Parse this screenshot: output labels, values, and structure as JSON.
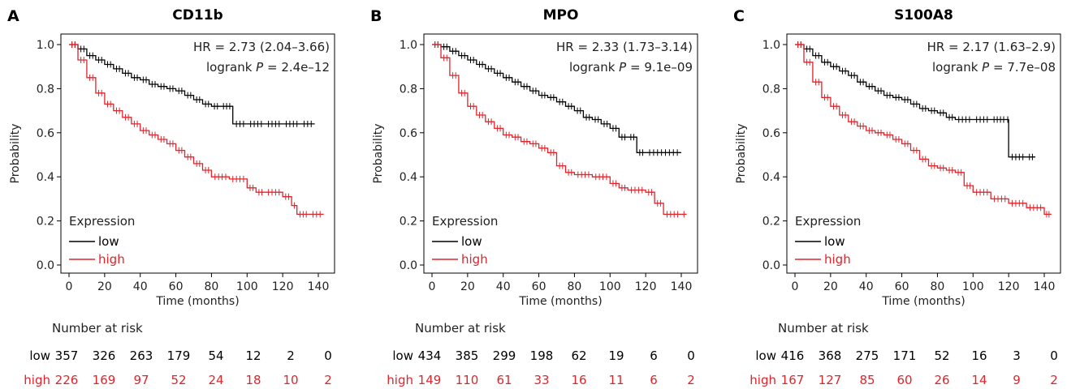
{
  "colors": {
    "low": "#000000",
    "high": "#e0242b"
  },
  "chart_data": [
    {
      "type": "line",
      "panel_letter": "A",
      "title": "CD11b",
      "xlabel": "Time (months)",
      "ylabel": "Probability",
      "xlim": [
        0,
        145
      ],
      "ylim": [
        0,
        1.05
      ],
      "x_ticks": [
        0,
        20,
        40,
        60,
        80,
        100,
        120,
        140
      ],
      "y_ticks": [
        "0.0",
        "0.2",
        "0.4",
        "0.6",
        "0.8",
        "1.0"
      ],
      "hr_text": "HR = 2.73 (2.04–3.66)",
      "logrank_prefix": "logrank ",
      "logrank_p_symbol": "P",
      "logrank_value": " = 2.4e–12",
      "legend_title": "Expression",
      "series": [
        {
          "name": "low",
          "color_key": "low",
          "x": [
            0,
            5,
            10,
            15,
            20,
            25,
            30,
            35,
            40,
            45,
            50,
            55,
            60,
            65,
            70,
            75,
            80,
            85,
            92,
            100,
            110,
            120,
            130,
            138
          ],
          "y": [
            1.0,
            0.98,
            0.95,
            0.93,
            0.91,
            0.89,
            0.87,
            0.85,
            0.84,
            0.82,
            0.81,
            0.8,
            0.79,
            0.77,
            0.75,
            0.73,
            0.72,
            0.72,
            0.64,
            0.64,
            0.64,
            0.64,
            0.64,
            0.64
          ]
        },
        {
          "name": "high",
          "color_key": "high",
          "x": [
            0,
            5,
            10,
            15,
            20,
            25,
            30,
            35,
            40,
            45,
            50,
            55,
            60,
            65,
            70,
            75,
            80,
            90,
            100,
            105,
            110,
            120,
            125,
            128,
            135,
            143
          ],
          "y": [
            1.0,
            0.93,
            0.85,
            0.78,
            0.73,
            0.7,
            0.67,
            0.64,
            0.61,
            0.59,
            0.57,
            0.55,
            0.52,
            0.49,
            0.46,
            0.43,
            0.4,
            0.39,
            0.35,
            0.33,
            0.33,
            0.31,
            0.27,
            0.23,
            0.23,
            0.23
          ]
        }
      ],
      "risk": {
        "title": "Number at risk",
        "low_label": "low",
        "high_label": "high",
        "low": [
          "357",
          "326",
          "263",
          "179",
          "54",
          "12",
          "2",
          "0"
        ],
        "high": [
          "226",
          "169",
          "97",
          "52",
          "24",
          "18",
          "10",
          "2"
        ]
      }
    },
    {
      "type": "line",
      "panel_letter": "B",
      "title": "MPO",
      "xlabel": "Time (months)",
      "ylabel": "Probability",
      "xlim": [
        0,
        145
      ],
      "ylim": [
        0,
        1.05
      ],
      "x_ticks": [
        0,
        20,
        40,
        60,
        80,
        100,
        120,
        140
      ],
      "y_ticks": [
        "0.0",
        "0.2",
        "0.4",
        "0.6",
        "0.8",
        "1.0"
      ],
      "hr_text": "HR = 2.33 (1.73–3.14)",
      "logrank_prefix": "logrank ",
      "logrank_p_symbol": "P",
      "logrank_value": " = 9.1e–09",
      "legend_title": "Expression",
      "series": [
        {
          "name": "low",
          "color_key": "low",
          "x": [
            0,
            5,
            10,
            15,
            20,
            25,
            30,
            35,
            40,
            45,
            50,
            55,
            60,
            65,
            70,
            75,
            80,
            85,
            90,
            95,
            100,
            105,
            110,
            115,
            120,
            140
          ],
          "y": [
            1.0,
            0.99,
            0.97,
            0.95,
            0.93,
            0.91,
            0.89,
            0.87,
            0.85,
            0.83,
            0.81,
            0.79,
            0.77,
            0.76,
            0.74,
            0.72,
            0.7,
            0.67,
            0.66,
            0.64,
            0.62,
            0.58,
            0.58,
            0.51,
            0.51,
            0.51
          ]
        },
        {
          "name": "high",
          "color_key": "high",
          "x": [
            0,
            5,
            10,
            15,
            20,
            25,
            30,
            35,
            40,
            45,
            50,
            55,
            60,
            65,
            70,
            75,
            80,
            90,
            100,
            105,
            110,
            120,
            125,
            130,
            140,
            143
          ],
          "y": [
            1.0,
            0.94,
            0.86,
            0.78,
            0.72,
            0.68,
            0.65,
            0.62,
            0.59,
            0.58,
            0.56,
            0.55,
            0.53,
            0.51,
            0.45,
            0.42,
            0.41,
            0.4,
            0.37,
            0.35,
            0.34,
            0.33,
            0.28,
            0.23,
            0.23,
            0.23
          ]
        }
      ],
      "risk": {
        "title": "Number at risk",
        "low_label": "low",
        "high_label": "high",
        "low": [
          "434",
          "385",
          "299",
          "198",
          "62",
          "19",
          "6",
          "0"
        ],
        "high": [
          "149",
          "110",
          "61",
          "33",
          "16",
          "11",
          "6",
          "2"
        ]
      }
    },
    {
      "type": "line",
      "panel_letter": "C",
      "title": "S100A8",
      "xlabel": "Time (months)",
      "ylabel": "Probability",
      "xlim": [
        0,
        145
      ],
      "ylim": [
        0,
        1.05
      ],
      "x_ticks": [
        0,
        20,
        40,
        60,
        80,
        100,
        120,
        140
      ],
      "y_ticks": [
        "0.0",
        "0.2",
        "0.4",
        "0.6",
        "0.8",
        "1.0"
      ],
      "hr_text": "HR = 2.17 (1.63–2.9)",
      "logrank_prefix": "logrank ",
      "logrank_p_symbol": "P",
      "logrank_value": " = 7.7e–08",
      "legend_title": "Expression",
      "series": [
        {
          "name": "low",
          "color_key": "low",
          "x": [
            0,
            5,
            10,
            15,
            20,
            25,
            30,
            35,
            40,
            45,
            50,
            55,
            60,
            65,
            70,
            75,
            80,
            85,
            90,
            100,
            110,
            119,
            120,
            130,
            135
          ],
          "y": [
            1.0,
            0.98,
            0.95,
            0.92,
            0.9,
            0.88,
            0.86,
            0.83,
            0.81,
            0.79,
            0.77,
            0.76,
            0.75,
            0.73,
            0.71,
            0.7,
            0.69,
            0.67,
            0.66,
            0.66,
            0.66,
            0.66,
            0.49,
            0.49,
            0.49
          ]
        },
        {
          "name": "high",
          "color_key": "high",
          "x": [
            0,
            5,
            10,
            15,
            20,
            25,
            30,
            35,
            40,
            45,
            50,
            55,
            60,
            65,
            70,
            75,
            80,
            85,
            90,
            95,
            100,
            110,
            120,
            130,
            140,
            144
          ],
          "y": [
            1.0,
            0.92,
            0.83,
            0.76,
            0.72,
            0.68,
            0.65,
            0.63,
            0.61,
            0.6,
            0.59,
            0.57,
            0.55,
            0.52,
            0.48,
            0.45,
            0.44,
            0.43,
            0.42,
            0.36,
            0.33,
            0.3,
            0.28,
            0.26,
            0.23,
            0.23
          ]
        }
      ],
      "risk": {
        "title": "Number at risk",
        "low_label": "low",
        "high_label": "high",
        "low": [
          "416",
          "368",
          "275",
          "171",
          "52",
          "16",
          "3",
          "0"
        ],
        "high": [
          "167",
          "127",
          "85",
          "60",
          "26",
          "14",
          "9",
          "2"
        ]
      }
    }
  ]
}
